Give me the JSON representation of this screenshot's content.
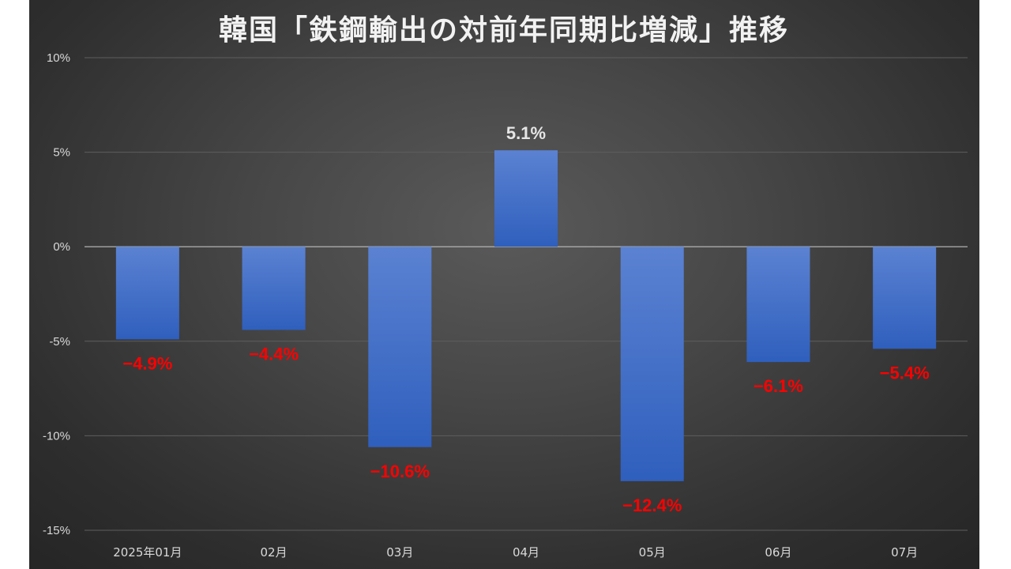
{
  "chart_data": {
    "type": "bar",
    "title": "韓国「鉄鋼輸出の対前年同期比増減」推移",
    "categories": [
      "2025年01月",
      "02月",
      "03月",
      "04月",
      "05月",
      "06月",
      "07月"
    ],
    "values": [
      -4.9,
      -4.4,
      -10.6,
      5.1,
      -12.4,
      -6.1,
      -5.4
    ],
    "data_labels": [
      "−4.9%",
      "−4.4%",
      "−10.6%",
      "5.1%",
      "−12.4%",
      "−6.1%",
      "−5.4%"
    ],
    "ylim": [
      -15,
      10
    ],
    "yticks": [
      10,
      5,
      0,
      -5,
      -10,
      -15
    ],
    "ytick_labels": [
      "10%",
      "5%",
      "0%",
      "-5%",
      "-10%",
      "-15%"
    ],
    "grid": true,
    "colors": {
      "bar_top": "#5b82d2",
      "bar_bottom": "#2f5fbd",
      "positive_label": "#e6e6e6",
      "negative_label": "#ff0000",
      "gridline": "#5e5e5e",
      "zero_line": "#bfbfbf"
    }
  }
}
